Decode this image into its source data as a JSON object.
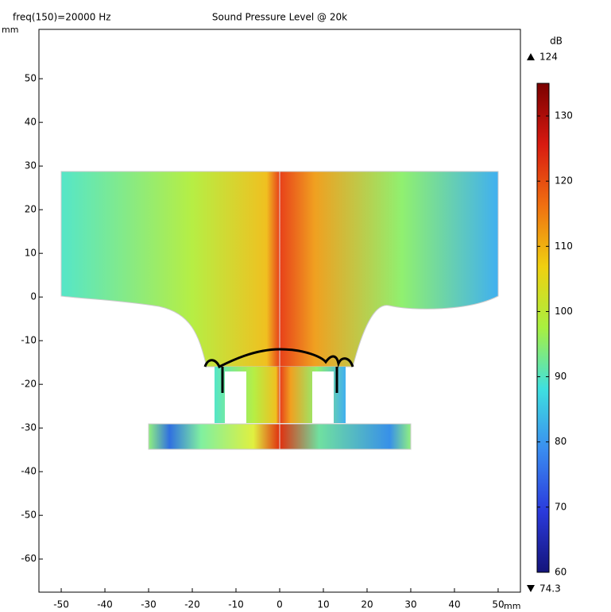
{
  "chart_data": {
    "type": "field",
    "title": "Sound Pressure Level @ 20k",
    "subtitle": "freq(150)=20000 Hz",
    "x_unit": "mm",
    "y_unit": "mm",
    "xlim": [
      -55.1,
      55.1
    ],
    "ylim": [
      -67.6,
      61.3
    ],
    "xticks": [
      -50,
      -40,
      -30,
      -20,
      -10,
      0,
      10,
      20,
      30,
      40,
      50
    ],
    "yticks": [
      -60,
      -50,
      -40,
      -30,
      -20,
      -10,
      0,
      10,
      20,
      30,
      40,
      50
    ],
    "colorbar": {
      "label": "dB",
      "lim": [
        60,
        135
      ],
      "ticks": [
        60,
        70,
        80,
        90,
        100,
        110,
        120,
        130
      ],
      "max": 124,
      "min": 74.3,
      "colormap": [
        "#14147a",
        "#2a3adc",
        "#3a8cf0",
        "#3ee0e0",
        "#a8f040",
        "#f0d010",
        "#f07010",
        "#d81a10",
        "#7a0000"
      ]
    }
  }
}
